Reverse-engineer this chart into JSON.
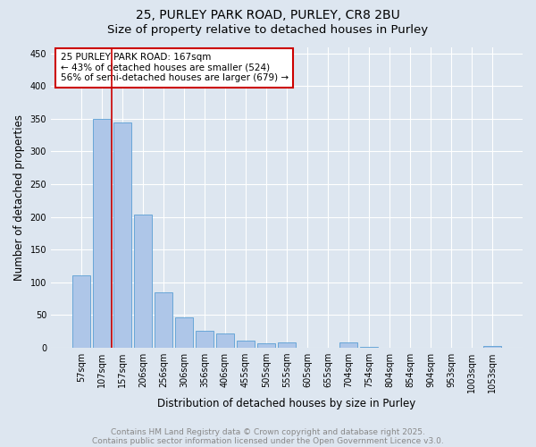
{
  "title1": "25, PURLEY PARK ROAD, PURLEY, CR8 2BU",
  "title2": "Size of property relative to detached houses in Purley",
  "xlabel": "Distribution of detached houses by size in Purley",
  "ylabel": "Number of detached properties",
  "bar_labels": [
    "57sqm",
    "107sqm",
    "157sqm",
    "206sqm",
    "256sqm",
    "306sqm",
    "356sqm",
    "406sqm",
    "455sqm",
    "505sqm",
    "555sqm",
    "605sqm",
    "655sqm",
    "704sqm",
    "754sqm",
    "804sqm",
    "854sqm",
    "904sqm",
    "953sqm",
    "1003sqm",
    "1053sqm"
  ],
  "bar_values": [
    110,
    350,
    345,
    203,
    85,
    46,
    25,
    21,
    10,
    6,
    8,
    0,
    0,
    8,
    1,
    0,
    0,
    0,
    0,
    0,
    3
  ],
  "bar_color": "#aec6e8",
  "bar_edgecolor": "#5a9fd4",
  "vline_color": "#cc0000",
  "vline_pos": 1.5,
  "annotation_text": "25 PURLEY PARK ROAD: 167sqm\n← 43% of detached houses are smaller (524)\n56% of semi-detached houses are larger (679) →",
  "annotation_box_edgecolor": "#cc0000",
  "ylim": [
    0,
    460
  ],
  "yticks": [
    0,
    50,
    100,
    150,
    200,
    250,
    300,
    350,
    400,
    450
  ],
  "footer_line1": "Contains HM Land Registry data © Crown copyright and database right 2025.",
  "footer_line2": "Contains public sector information licensed under the Open Government Licence v3.0.",
  "bg_color": "#dde6f0",
  "plot_bg_color": "#dde6f0",
  "grid_color": "#ffffff",
  "title1_fontsize": 10,
  "title2_fontsize": 9.5,
  "ylabel_fontsize": 8.5,
  "xlabel_fontsize": 8.5,
  "tick_fontsize": 7,
  "annotation_fontsize": 7.5,
  "footer_fontsize": 6.5
}
